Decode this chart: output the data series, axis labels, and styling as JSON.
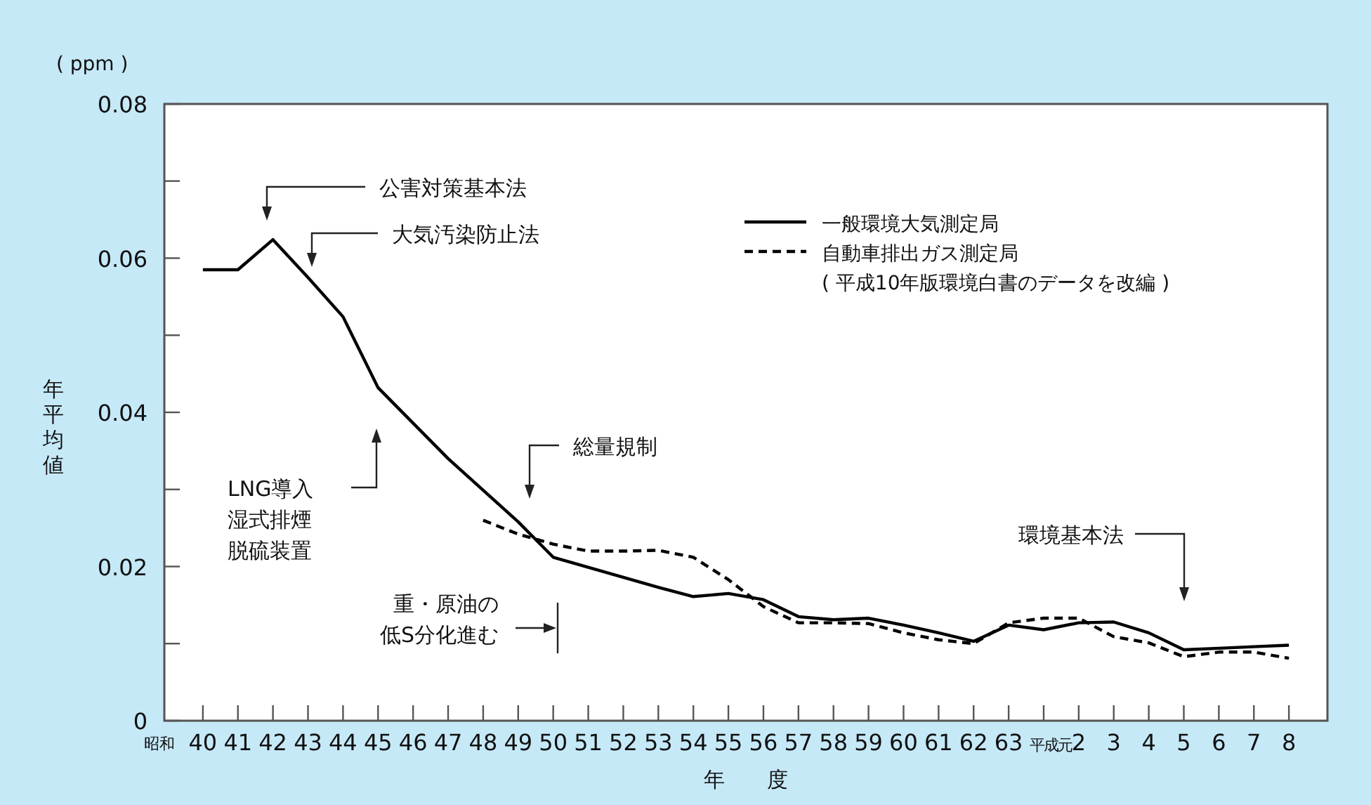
{
  "chart_data": {
    "type": "line",
    "ylabel": "年平均値",
    "xlabel": "年　　度",
    "categories": [
      "40",
      "41",
      "42",
      "43",
      "44",
      "45",
      "46",
      "47",
      "48",
      "49",
      "50",
      "51",
      "52",
      "53",
      "54",
      "55",
      "56",
      "57",
      "58",
      "59",
      "60",
      "61",
      "62",
      "63",
      "平成元",
      "2",
      "3",
      "4",
      "5",
      "6",
      "7",
      "8"
    ],
    "series": [
      {
        "name": "一般環境大気測定局",
        "color": "#000000",
        "line_style": "solid",
        "values": [
          0.0585,
          0.0585,
          0.0624,
          0.0575,
          0.0524,
          0.0432,
          0.0386,
          0.034,
          0.0299,
          0.0258,
          0.0212,
          0.0199,
          0.0186,
          0.0173,
          0.0161,
          0.0165,
          0.0157,
          0.0135,
          0.0131,
          0.0133,
          0.0124,
          0.0114,
          0.0103,
          0.0124,
          0.0118,
          0.0127,
          0.0128,
          0.0114,
          0.0092,
          0.0094,
          0.0096,
          0.0098
        ]
      },
      {
        "name": "自動車排出ガス測定局",
        "color": "#000000",
        "line_style": "dashed",
        "values": [
          null,
          null,
          null,
          null,
          null,
          null,
          null,
          null,
          0.026,
          0.0242,
          0.0229,
          0.022,
          0.022,
          0.0221,
          0.0212,
          0.0183,
          0.0148,
          0.0127,
          0.0127,
          0.0126,
          0.0114,
          0.0105,
          0.01,
          0.0127,
          0.0133,
          0.0133,
          0.0109,
          0.0101,
          0.0083,
          0.0089,
          0.0089,
          0.0081
        ]
      }
    ],
    "ylim": [
      0,
      0.08
    ],
    "yticks": [
      0,
      {
        "value": 0.01,
        "label": null
      },
      0.02,
      {
        "value": 0.03,
        "label": null
      },
      0.04,
      {
        "value": 0.05,
        "label": null
      },
      0.06,
      {
        "value": 0.07,
        "label": null
      },
      0.08
    ],
    "grid": false,
    "legend": "top right",
    "annotations": [
      "公害対策基本法",
      "大気汚染防止法",
      "LNG導入湿式排煙脱硫装置",
      "総量規制",
      "重・原油の低S分化進む",
      "環境基本法",
      "( 平成10年版環境白書のデータを改編 )",
      "( ppm )",
      "昭和"
    ]
  }
}
